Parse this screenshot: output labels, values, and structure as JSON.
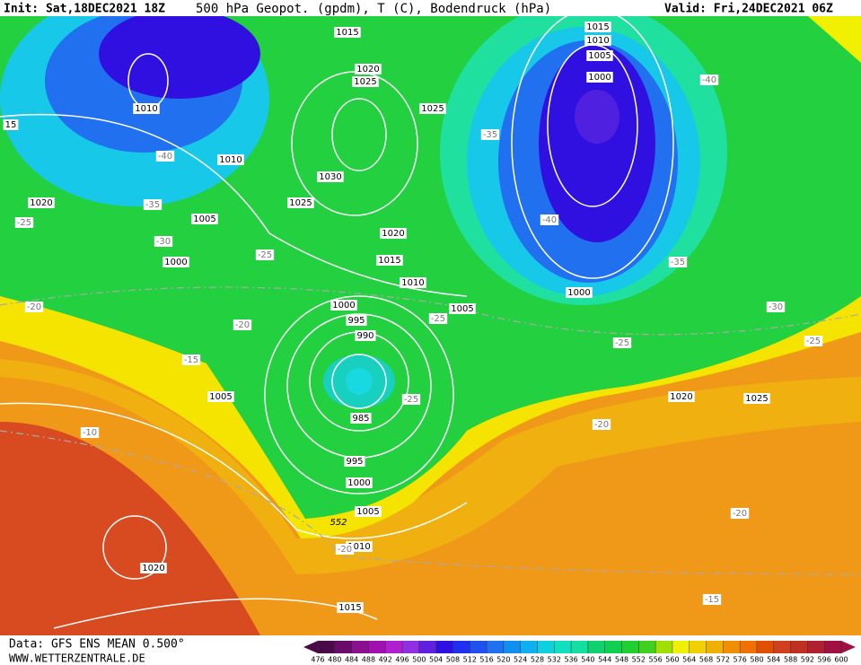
{
  "header": {
    "init": "Init: Sat,18DEC2021 18Z",
    "title": "500 hPa Geopot. (gpdm), T (C), Bodendruck (hPa)",
    "valid": "Valid: Fri,24DEC2021 06Z"
  },
  "footer": {
    "data": "Data: GFS ENS MEAN 0.500°",
    "site": "WWW.WETTERZENTRALE.DE"
  },
  "map": {
    "pressure_labels": [
      1015,
      1020,
      1025,
      1010,
      1010,
      1030,
      1025,
      1020,
      1015,
      1010,
      1020,
      1005,
      1000,
      1000,
      995,
      990,
      985,
      995,
      1000,
      1005,
      1010,
      1020,
      1015,
      1005,
      1005,
      1025,
      1015,
      1010,
      1005,
      1000,
      1000,
      1020,
      1025,
      15
    ],
    "temperature_labels": [
      -40,
      -35,
      -30,
      -25,
      -25,
      -20,
      -20,
      -15,
      -10,
      -25,
      -25,
      -35,
      -40,
      -40,
      -35,
      -30,
      -25,
      -25,
      -20,
      -20,
      -15,
      -20
    ],
    "height_label": 552
  },
  "colorbar": {
    "ticks": [
      476,
      480,
      484,
      488,
      492,
      496,
      500,
      504,
      508,
      512,
      516,
      520,
      524,
      528,
      532,
      536,
      540,
      544,
      548,
      552,
      556,
      560,
      564,
      568,
      572,
      576,
      580,
      584,
      588,
      592,
      596,
      600
    ],
    "colors": [
      "#4a0a4a",
      "#6a0a6a",
      "#8a1090",
      "#a010b0",
      "#b020d0",
      "#9030e0",
      "#6020e0",
      "#3010e0",
      "#2030f0",
      "#2050f0",
      "#2070f0",
      "#1090f0",
      "#10b0f0",
      "#10d0e0",
      "#10e0c0",
      "#10e0a0",
      "#10d070",
      "#10d050",
      "#20d030",
      "#40d020",
      "#a0e000",
      "#f0f000",
      "#f0d000",
      "#f0b000",
      "#f09000",
      "#f07000",
      "#e05000",
      "#d04020",
      "#c03020",
      "#b02030",
      "#a01040"
    ]
  }
}
